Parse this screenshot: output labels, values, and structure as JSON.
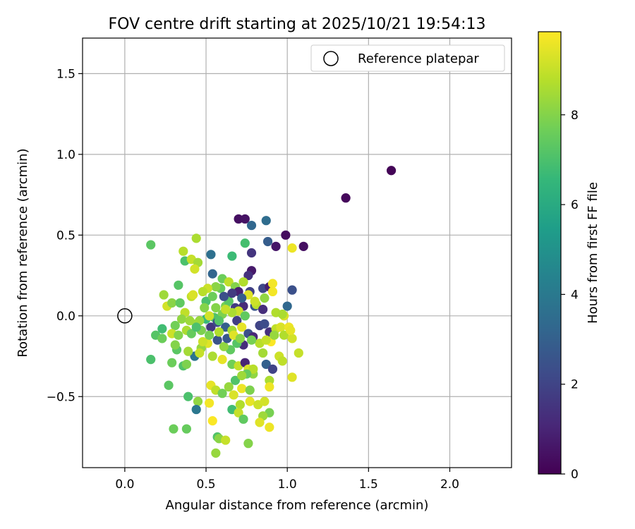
{
  "chart_data": {
    "type": "scatter",
    "title": "FOV centre drift starting at 2025/10/21 19:54:13",
    "xlabel": "Angular distance from reference (arcmin)",
    "ylabel": "Rotation from reference (arcmin)",
    "xlim": [
      -0.26,
      2.38
    ],
    "ylim": [
      -0.94,
      1.72
    ],
    "xticks": [
      0.0,
      0.5,
      1.0,
      1.5,
      2.0
    ],
    "xtick_labels": [
      "0.0",
      "0.5",
      "1.0",
      "1.5",
      "2.0"
    ],
    "yticks": [
      -0.5,
      0.0,
      0.5,
      1.0,
      1.5
    ],
    "ytick_labels": [
      "−0.5",
      "0.0",
      "0.5",
      "1.0",
      "1.5"
    ],
    "grid": true,
    "legend": {
      "location": "top-right",
      "entries": [
        "Reference platepar"
      ]
    },
    "reference_point": {
      "x": 0.0,
      "y": 0.0,
      "label": "Reference platepar"
    },
    "colorbar": {
      "label": "Hours from first FF file",
      "range": [
        0,
        9.85
      ],
      "ticks": [
        0,
        2,
        4,
        6,
        8
      ],
      "tick_labels": [
        "0",
        "2",
        "4",
        "6",
        "8"
      ],
      "colormap": "viridis"
    },
    "colormap_stops": [
      "#440154",
      "#482878",
      "#3e4a89",
      "#31688e",
      "#26828e",
      "#1f9e89",
      "#35b779",
      "#6ece58",
      "#b5de2b",
      "#fde725"
    ],
    "series": [
      {
        "name": "FOV centre drift",
        "points": [
          {
            "x": 1.64,
            "y": 0.9,
            "t": 0.1
          },
          {
            "x": 1.36,
            "y": 0.73,
            "t": 0.2
          },
          {
            "x": 0.7,
            "y": 0.6,
            "t": 0.4
          },
          {
            "x": 0.74,
            "y": 0.6,
            "t": 0.5
          },
          {
            "x": 0.87,
            "y": 0.59,
            "t": 3.5
          },
          {
            "x": 0.78,
            "y": 0.56,
            "t": 3.3
          },
          {
            "x": 0.99,
            "y": 0.5,
            "t": 0.3
          },
          {
            "x": 1.1,
            "y": 0.43,
            "t": 0.4
          },
          {
            "x": 0.88,
            "y": 0.46,
            "t": 2.9
          },
          {
            "x": 0.93,
            "y": 0.43,
            "t": 0.6
          },
          {
            "x": 1.03,
            "y": 0.42,
            "t": 9.6
          },
          {
            "x": 0.78,
            "y": 0.39,
            "t": 1.5
          },
          {
            "x": 0.53,
            "y": 0.38,
            "t": 3.6
          },
          {
            "x": 0.66,
            "y": 0.37,
            "t": 6.7
          },
          {
            "x": 0.74,
            "y": 0.45,
            "t": 6.9
          },
          {
            "x": 0.44,
            "y": 0.48,
            "t": 8.6
          },
          {
            "x": 0.16,
            "y": 0.44,
            "t": 7.3
          },
          {
            "x": 0.36,
            "y": 0.4,
            "t": 8.8
          },
          {
            "x": 0.37,
            "y": 0.34,
            "t": 7.0
          },
          {
            "x": 0.41,
            "y": 0.35,
            "t": 9.0
          },
          {
            "x": 0.45,
            "y": 0.33,
            "t": 8.5
          },
          {
            "x": 0.78,
            "y": 0.28,
            "t": 0.7
          },
          {
            "x": 0.76,
            "y": 0.25,
            "t": 1.4
          },
          {
            "x": 0.54,
            "y": 0.26,
            "t": 3.2
          },
          {
            "x": 0.43,
            "y": 0.29,
            "t": 9.2
          },
          {
            "x": 0.6,
            "y": 0.23,
            "t": 7.6
          },
          {
            "x": 0.64,
            "y": 0.21,
            "t": 8.9
          },
          {
            "x": 0.68,
            "y": 0.18,
            "t": 8.0
          },
          {
            "x": 0.73,
            "y": 0.21,
            "t": 8.7
          },
          {
            "x": 0.85,
            "y": 0.17,
            "t": 2.1
          },
          {
            "x": 0.89,
            "y": 0.18,
            "t": 0.8
          },
          {
            "x": 0.91,
            "y": 0.2,
            "t": 9.7
          },
          {
            "x": 1.03,
            "y": 0.16,
            "t": 2.4
          },
          {
            "x": 0.7,
            "y": 0.15,
            "t": 0.9
          },
          {
            "x": 0.77,
            "y": 0.15,
            "t": 1.9
          },
          {
            "x": 0.76,
            "y": 0.13,
            "t": 9.4
          },
          {
            "x": 0.59,
            "y": 0.17,
            "t": 7.5
          },
          {
            "x": 0.56,
            "y": 0.18,
            "t": 8.1
          },
          {
            "x": 0.51,
            "y": 0.17,
            "t": 9.1
          },
          {
            "x": 0.33,
            "y": 0.19,
            "t": 7.2
          },
          {
            "x": 0.24,
            "y": 0.13,
            "t": 8.4
          },
          {
            "x": 0.41,
            "y": 0.12,
            "t": 8.9
          },
          {
            "x": 0.8,
            "y": 0.06,
            "t": 2.6
          },
          {
            "x": 0.73,
            "y": 0.06,
            "t": 1.2
          },
          {
            "x": 0.68,
            "y": 0.05,
            "t": 1.7
          },
          {
            "x": 0.62,
            "y": 0.06,
            "t": 7.8
          },
          {
            "x": 0.64,
            "y": 0.09,
            "t": 7.3
          },
          {
            "x": 0.5,
            "y": 0.09,
            "t": 7.0
          },
          {
            "x": 0.56,
            "y": 0.05,
            "t": 8.0
          },
          {
            "x": 0.81,
            "y": 0.07,
            "t": 8.8
          },
          {
            "x": 0.85,
            "y": 0.04,
            "t": 1.3
          },
          {
            "x": 1.0,
            "y": 0.06,
            "t": 3.3
          },
          {
            "x": 0.93,
            "y": 0.02,
            "t": 8.7
          },
          {
            "x": 0.98,
            "y": 0.0,
            "t": 9.3
          },
          {
            "x": 0.7,
            "y": 0.03,
            "t": 9.1
          },
          {
            "x": 0.6,
            "y": 0.01,
            "t": 7.9
          },
          {
            "x": 0.55,
            "y": -0.01,
            "t": 7.1
          },
          {
            "x": 0.5,
            "y": -0.02,
            "t": 6.6
          },
          {
            "x": 0.46,
            "y": -0.03,
            "t": 8.3
          },
          {
            "x": 0.37,
            "y": 0.02,
            "t": 8.9
          },
          {
            "x": 0.35,
            "y": -0.02,
            "t": 8.2
          },
          {
            "x": 0.31,
            "y": -0.06,
            "t": 7.7
          },
          {
            "x": 0.26,
            "y": 0.06,
            "t": 9.2
          },
          {
            "x": 0.29,
            "y": 0.08,
            "t": 8.1
          },
          {
            "x": 0.34,
            "y": 0.08,
            "t": 7.4
          },
          {
            "x": 0.23,
            "y": -0.08,
            "t": 6.8
          },
          {
            "x": 0.19,
            "y": -0.12,
            "t": 7.2
          },
          {
            "x": 0.23,
            "y": -0.14,
            "t": 7.6
          },
          {
            "x": 0.29,
            "y": -0.11,
            "t": 9.1
          },
          {
            "x": 0.33,
            "y": -0.12,
            "t": 8.0
          },
          {
            "x": 0.38,
            "y": -0.09,
            "t": 8.6
          },
          {
            "x": 0.41,
            "y": -0.11,
            "t": 7.5
          },
          {
            "x": 0.44,
            "y": -0.05,
            "t": 8.4
          },
          {
            "x": 0.47,
            "y": -0.09,
            "t": 7.9
          },
          {
            "x": 0.53,
            "y": -0.07,
            "t": 1.6
          },
          {
            "x": 0.57,
            "y": -0.04,
            "t": 2.2
          },
          {
            "x": 0.62,
            "y": -0.07,
            "t": 3.0
          },
          {
            "x": 0.66,
            "y": -0.09,
            "t": 8.5
          },
          {
            "x": 0.69,
            "y": -0.03,
            "t": 1.8
          },
          {
            "x": 0.72,
            "y": -0.07,
            "t": 9.5
          },
          {
            "x": 0.76,
            "y": -0.11,
            "t": 2.4
          },
          {
            "x": 0.79,
            "y": -0.13,
            "t": 1.1
          },
          {
            "x": 0.83,
            "y": -0.06,
            "t": 2.0
          },
          {
            "x": 0.86,
            "y": -0.05,
            "t": 2.3
          },
          {
            "x": 0.89,
            "y": -0.1,
            "t": 1.4
          },
          {
            "x": 0.93,
            "y": -0.08,
            "t": 8.9
          },
          {
            "x": 0.96,
            "y": -0.07,
            "t": 9.3
          },
          {
            "x": 0.98,
            "y": -0.12,
            "t": 8.7
          },
          {
            "x": 1.01,
            "y": -0.07,
            "t": 9.6
          },
          {
            "x": 1.03,
            "y": -0.14,
            "t": 9.2
          },
          {
            "x": 0.9,
            "y": -0.16,
            "t": 9.8
          },
          {
            "x": 0.83,
            "y": -0.17,
            "t": 8.8
          },
          {
            "x": 0.78,
            "y": -0.15,
            "t": 7.8
          },
          {
            "x": 0.73,
            "y": -0.18,
            "t": 1.3
          },
          {
            "x": 0.69,
            "y": -0.17,
            "t": 7.2
          },
          {
            "x": 0.65,
            "y": -0.21,
            "t": 7.4
          },
          {
            "x": 0.61,
            "y": -0.19,
            "t": 8.2
          },
          {
            "x": 0.57,
            "y": -0.15,
            "t": 2.5
          },
          {
            "x": 0.51,
            "y": -0.17,
            "t": 9.4
          },
          {
            "x": 0.47,
            "y": -0.2,
            "t": 8.3
          },
          {
            "x": 0.43,
            "y": -0.25,
            "t": 3.8
          },
          {
            "x": 0.39,
            "y": -0.22,
            "t": 8.5
          },
          {
            "x": 0.32,
            "y": -0.21,
            "t": 7.3
          },
          {
            "x": 0.31,
            "y": -0.18,
            "t": 8.0
          },
          {
            "x": 0.29,
            "y": -0.29,
            "t": 7.6
          },
          {
            "x": 0.36,
            "y": -0.31,
            "t": 7.1
          },
          {
            "x": 0.38,
            "y": -0.3,
            "t": 7.9
          },
          {
            "x": 0.46,
            "y": -0.23,
            "t": 9.0
          },
          {
            "x": 0.54,
            "y": -0.25,
            "t": 8.6
          },
          {
            "x": 0.6,
            "y": -0.27,
            "t": 9.5
          },
          {
            "x": 0.66,
            "y": -0.3,
            "t": 7.7
          },
          {
            "x": 0.7,
            "y": -0.31,
            "t": 9.0
          },
          {
            "x": 0.74,
            "y": -0.29,
            "t": 1.0
          },
          {
            "x": 0.76,
            "y": -0.33,
            "t": 9.3
          },
          {
            "x": 0.79,
            "y": -0.36,
            "t": 8.2
          },
          {
            "x": 0.85,
            "y": -0.23,
            "t": 8.5
          },
          {
            "x": 0.87,
            "y": -0.3,
            "t": 3.0
          },
          {
            "x": 0.91,
            "y": -0.33,
            "t": 2.0
          },
          {
            "x": 0.95,
            "y": -0.25,
            "t": 9.1
          },
          {
            "x": 0.97,
            "y": -0.28,
            "t": 8.9
          },
          {
            "x": 1.03,
            "y": -0.38,
            "t": 9.4
          },
          {
            "x": 1.07,
            "y": -0.23,
            "t": 9.0
          },
          {
            "x": 0.16,
            "y": -0.27,
            "t": 7.0
          },
          {
            "x": 0.27,
            "y": -0.43,
            "t": 7.3
          },
          {
            "x": 0.39,
            "y": -0.5,
            "t": 7.0
          },
          {
            "x": 0.45,
            "y": -0.53,
            "t": 8.2
          },
          {
            "x": 0.44,
            "y": -0.58,
            "t": 3.9
          },
          {
            "x": 0.53,
            "y": -0.43,
            "t": 9.5
          },
          {
            "x": 0.52,
            "y": -0.54,
            "t": 9.7
          },
          {
            "x": 0.56,
            "y": -0.46,
            "t": 8.9
          },
          {
            "x": 0.6,
            "y": -0.48,
            "t": 7.7
          },
          {
            "x": 0.64,
            "y": -0.44,
            "t": 8.3
          },
          {
            "x": 0.68,
            "y": -0.4,
            "t": 7.1
          },
          {
            "x": 0.72,
            "y": -0.45,
            "t": 9.6
          },
          {
            "x": 0.67,
            "y": -0.49,
            "t": 9.3
          },
          {
            "x": 0.71,
            "y": -0.55,
            "t": 8.7
          },
          {
            "x": 0.66,
            "y": -0.58,
            "t": 6.8
          },
          {
            "x": 0.7,
            "y": -0.6,
            "t": 9.0
          },
          {
            "x": 0.73,
            "y": -0.64,
            "t": 7.4
          },
          {
            "x": 0.77,
            "y": -0.46,
            "t": 7.9
          },
          {
            "x": 0.77,
            "y": -0.53,
            "t": 9.5
          },
          {
            "x": 0.82,
            "y": -0.55,
            "t": 9.1
          },
          {
            "x": 0.86,
            "y": -0.53,
            "t": 9.2
          },
          {
            "x": 0.89,
            "y": -0.6,
            "t": 7.8
          },
          {
            "x": 0.85,
            "y": -0.62,
            "t": 8.4
          },
          {
            "x": 0.83,
            "y": -0.66,
            "t": 9.4
          },
          {
            "x": 0.89,
            "y": -0.69,
            "t": 9.6
          },
          {
            "x": 0.54,
            "y": -0.65,
            "t": 9.8
          },
          {
            "x": 0.3,
            "y": -0.7,
            "t": 7.6
          },
          {
            "x": 0.38,
            "y": -0.7,
            "t": 7.5
          },
          {
            "x": 0.57,
            "y": -0.75,
            "t": 7.1
          },
          {
            "x": 0.58,
            "y": -0.76,
            "t": 8.1
          },
          {
            "x": 0.62,
            "y": -0.77,
            "t": 9.0
          },
          {
            "x": 0.76,
            "y": -0.79,
            "t": 8.0
          },
          {
            "x": 0.56,
            "y": -0.85,
            "t": 8.3
          },
          {
            "x": 0.89,
            "y": -0.4,
            "t": 8.6
          },
          {
            "x": 0.89,
            "y": -0.44,
            "t": 9.6
          },
          {
            "x": 0.79,
            "y": -0.33,
            "t": 8.8
          },
          {
            "x": 0.75,
            "y": -0.36,
            "t": 7.5
          },
          {
            "x": 0.72,
            "y": -0.37,
            "t": 8.4
          },
          {
            "x": 0.48,
            "y": -0.16,
            "t": 9.1
          },
          {
            "x": 0.52,
            "y": -0.12,
            "t": 7.8
          },
          {
            "x": 0.58,
            "y": -0.1,
            "t": 8.7
          },
          {
            "x": 0.63,
            "y": -0.14,
            "t": 2.7
          },
          {
            "x": 0.67,
            "y": -0.12,
            "t": 9.4
          },
          {
            "x": 0.71,
            "y": -0.14,
            "t": 8.1
          },
          {
            "x": 0.74,
            "y": 0.0,
            "t": 7.4
          },
          {
            "x": 0.66,
            "y": 0.02,
            "t": 8.6
          },
          {
            "x": 0.62,
            "y": 0.04,
            "t": 9.0
          },
          {
            "x": 0.58,
            "y": -0.03,
            "t": 7.2
          },
          {
            "x": 0.54,
            "y": 0.12,
            "t": 7.6
          },
          {
            "x": 0.49,
            "y": 0.05,
            "t": 8.0
          },
          {
            "x": 0.52,
            "y": 0.0,
            "t": 9.2
          },
          {
            "x": 0.44,
            "y": -0.07,
            "t": 7.0
          },
          {
            "x": 0.4,
            "y": -0.03,
            "t": 8.4
          },
          {
            "x": 0.42,
            "y": 0.13,
            "t": 9.3
          },
          {
            "x": 0.48,
            "y": 0.15,
            "t": 8.8
          },
          {
            "x": 0.61,
            "y": 0.12,
            "t": 2.4
          },
          {
            "x": 0.66,
            "y": 0.14,
            "t": 1.7
          },
          {
            "x": 0.72,
            "y": 0.11,
            "t": 2.9
          },
          {
            "x": 0.8,
            "y": 0.09,
            "t": 9.1
          },
          {
            "x": 0.86,
            "y": 0.11,
            "t": 8.2
          },
          {
            "x": 0.91,
            "y": 0.15,
            "t": 9.7
          },
          {
            "x": 0.97,
            "y": 0.01,
            "t": 8.6
          },
          {
            "x": 1.02,
            "y": -0.09,
            "t": 9.5
          },
          {
            "x": 0.92,
            "y": -0.12,
            "t": 8.3
          },
          {
            "x": 0.87,
            "y": -0.15,
            "t": 9.0
          }
        ]
      }
    ]
  }
}
